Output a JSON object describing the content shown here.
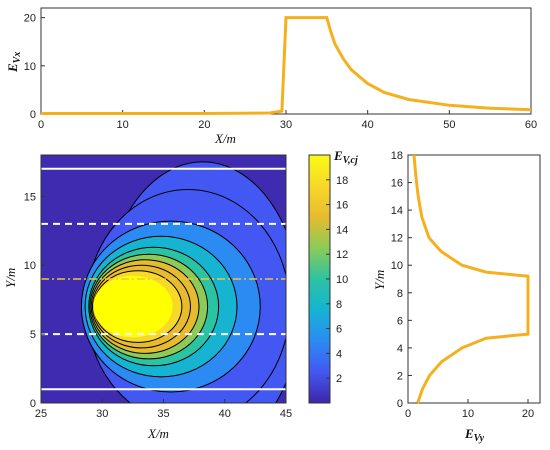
{
  "colors": {
    "curve": "#F4B01E",
    "axis": "#333333",
    "background_field": "#3E2BB0",
    "hotspot": "#FFFF00",
    "contour_line": "#000000",
    "white_line": "#FFFFFF",
    "dashdot_line": "#E8C840"
  },
  "chart_data": [
    {
      "type": "line",
      "panel": "top",
      "xlabel": "X/m",
      "ylabel": "E_Vx",
      "ylabel_main": "E",
      "ylabel_sub": "Vx",
      "xlim": [
        0,
        60
      ],
      "ylim": [
        0,
        22
      ],
      "xticks": [
        "0",
        "10",
        "20",
        "30",
        "40",
        "50",
        "60"
      ],
      "yticks": [
        "0",
        "10",
        "20"
      ],
      "series": [
        {
          "x": [
            0,
            10,
            20,
            28,
            29.5,
            30,
            30.3,
            32,
            34,
            35,
            35.5,
            36,
            37,
            38,
            40,
            42,
            45,
            50,
            55,
            60
          ],
          "y": [
            0.1,
            0.1,
            0.1,
            0.2,
            0.6,
            20,
            20,
            20,
            20,
            20,
            17,
            14.5,
            11.5,
            9.2,
            6.3,
            4.5,
            3.0,
            1.8,
            1.2,
            0.9
          ]
        }
      ]
    },
    {
      "type": "heatmap",
      "panel": "main",
      "xlabel": "X/m",
      "ylabel": "Y/m",
      "xlim": [
        25,
        45
      ],
      "ylim": [
        0,
        18
      ],
      "xticks": [
        "25",
        "30",
        "35",
        "40",
        "45"
      ],
      "yticks": [
        "0",
        "5",
        "10",
        "15"
      ],
      "colorbar": {
        "label": "E_V,cj",
        "label_main": "E",
        "label_sub": "V,cj",
        "range": [
          0,
          20
        ],
        "ticks": [
          "2",
          "4",
          "6",
          "8",
          "10",
          "12",
          "14",
          "16",
          "18"
        ],
        "stops": [
          "#3E26A8",
          "#4358F2",
          "#2B8BF2",
          "#16B4D1",
          "#2CC3A2",
          "#8CCB58",
          "#E6BB2F",
          "#F8D829",
          "#FAFA14"
        ]
      },
      "hot_region": {
        "cx": 32.5,
        "cy": 7,
        "rx": 3.2,
        "ry": 2.2
      },
      "contours": [
        {
          "cx": 32.9,
          "cy": 7,
          "rx": 3.6,
          "ry": 2.6
        },
        {
          "cx": 33.2,
          "cy": 7,
          "rx": 4.0,
          "ry": 3.0
        },
        {
          "cx": 33.5,
          "cy": 7,
          "rx": 4.4,
          "ry": 3.4
        },
        {
          "cx": 33.8,
          "cy": 7,
          "rx": 4.8,
          "ry": 3.8
        },
        {
          "cx": 34.2,
          "cy": 7,
          "rx": 5.3,
          "ry": 4.3
        },
        {
          "cx": 34.8,
          "cy": 7,
          "rx": 6.2,
          "ry": 5.1
        },
        {
          "cx": 35.6,
          "cy": 7,
          "rx": 7.3,
          "ry": 6.2
        },
        {
          "cx": 37.0,
          "cy": 7,
          "rx": 8.3,
          "ry": 8.5
        },
        {
          "cx": 38.2,
          "cy": 7,
          "rx": 8.0,
          "ry": 10.5
        }
      ],
      "lines": [
        {
          "y": 17,
          "style": "solid-white"
        },
        {
          "y": 13,
          "style": "dashed-white"
        },
        {
          "y": 9,
          "style": "dashdot-yellow"
        },
        {
          "y": 5,
          "style": "dashed-white"
        },
        {
          "y": 1,
          "style": "solid-white"
        }
      ]
    },
    {
      "type": "line",
      "panel": "right",
      "xlabel": "E_Vy",
      "xlabel_main": "E",
      "xlabel_sub": "Vy",
      "ylabel": "Y/m",
      "xlim": [
        0,
        22
      ],
      "ylim": [
        0,
        18
      ],
      "xticks": [
        "0",
        "10",
        "20"
      ],
      "yticks": [
        "0",
        "2",
        "4",
        "6",
        "8",
        "10",
        "12",
        "14",
        "16",
        "18"
      ],
      "series": [
        {
          "x": [
            1.6,
            2.4,
            3.6,
            5.6,
            9.0,
            13.0,
            20,
            20,
            20,
            20,
            13.0,
            9.0,
            5.5,
            3.5,
            2.3,
            1.7,
            1.3,
            1.0
          ],
          "y": [
            0,
            1,
            2,
            3,
            4,
            4.7,
            5,
            7,
            9,
            9.2,
            9.5,
            10,
            11,
            12,
            13.5,
            15,
            16.5,
            18
          ]
        }
      ]
    }
  ]
}
